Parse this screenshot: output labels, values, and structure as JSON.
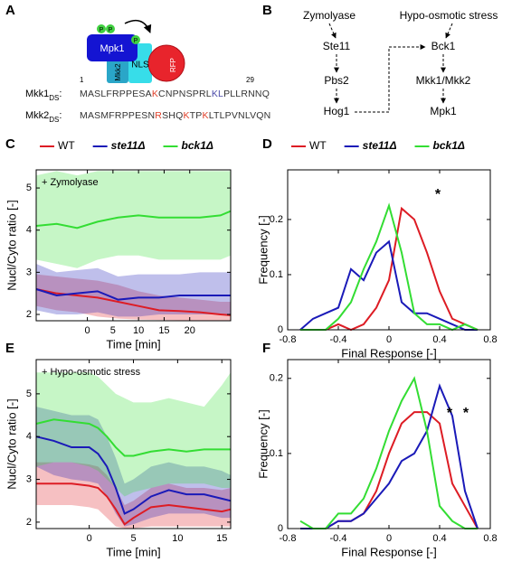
{
  "panel_a": {
    "letter": "A",
    "proteins": [
      "Mpk1",
      "Mkk2",
      "NLS",
      "RFP"
    ],
    "phospho": [
      "P",
      "P",
      "P"
    ],
    "seq_start": "1",
    "seq_end": "29",
    "sequences": [
      {
        "label": "Mkk1",
        "sub": "DS",
        "suffix": ":",
        "segments": [
          {
            "text": "MASLFRPPESA",
            "color": "#333333"
          },
          {
            "text": "K",
            "color": "#e0402a"
          },
          {
            "text": "CNPNSPRL",
            "color": "#333333"
          },
          {
            "text": "KL",
            "color": "#4a4aa8"
          },
          {
            "text": "PLLRNNQ",
            "color": "#333333"
          }
        ]
      },
      {
        "label": "Mkk2",
        "sub": "DS",
        "suffix": ":",
        "segments": [
          {
            "text": "MASMFRPPESN",
            "color": "#333333"
          },
          {
            "text": "R",
            "color": "#e0402a"
          },
          {
            "text": "SHQ",
            "color": "#333333"
          },
          {
            "text": "K",
            "color": "#e0402a"
          },
          {
            "text": "TP",
            "color": "#333333"
          },
          {
            "text": "K",
            "color": "#e0402a"
          },
          {
            "text": "LTLPVNLVQN",
            "color": "#333333"
          }
        ]
      }
    ]
  },
  "panel_b": {
    "letter": "B",
    "nodes": [
      "Zymolyase",
      "Ste11",
      "Pbs2",
      "Hog1",
      "Hypo-osmotic stress",
      "Bck1",
      "Mkk1/Mkk2",
      "Mpk1"
    ]
  },
  "chart_data": [
    {
      "panel": "C",
      "type": "line",
      "legend": "top",
      "xlabel": "Time [min]",
      "ylabel": "Nucl/Cyto ratio [-]",
      "annotations": [
        {
          "text": "+ Zymolyase",
          "color": "#000000"
        }
      ],
      "x": [
        -10,
        -6,
        -2,
        2,
        6,
        10,
        14,
        18,
        22,
        26,
        28
      ],
      "xlim": [
        -10,
        28
      ],
      "xticks": [
        0,
        5,
        10,
        15,
        20
      ],
      "ylim": [
        1.85,
        5.43
      ],
      "yticks": [
        2,
        3,
        4,
        5
      ],
      "series": [
        {
          "name": "WT",
          "color": "#dd1c24",
          "values": [
            2.6,
            2.5,
            2.45,
            2.4,
            2.3,
            2.2,
            2.1,
            2.08,
            2.05,
            2.0,
            1.98
          ],
          "lower": [
            2.2,
            2.1,
            2.05,
            1.95,
            1.9,
            1.88,
            1.87,
            1.86,
            1.86,
            1.86,
            1.86
          ],
          "upper": [
            2.95,
            2.9,
            2.85,
            2.8,
            2.7,
            2.55,
            2.45,
            2.4,
            2.35,
            2.3,
            2.3
          ]
        },
        {
          "name": "ste11Δ",
          "italic": true,
          "color": "#1a1ab8",
          "values": [
            2.6,
            2.45,
            2.5,
            2.55,
            2.35,
            2.4,
            2.4,
            2.45,
            2.45,
            2.45,
            2.45
          ],
          "lower": [
            2.1,
            2.0,
            2.0,
            2.05,
            1.95,
            1.95,
            2.0,
            2.0,
            2.0,
            2.0,
            2.0
          ],
          "upper": [
            3.2,
            3.0,
            3.05,
            3.1,
            2.9,
            2.95,
            2.95,
            2.95,
            3.0,
            3.0,
            3.0
          ]
        },
        {
          "name": "bck1Δ",
          "italic": true,
          "color": "#33dd33",
          "values": [
            4.1,
            4.15,
            4.05,
            4.2,
            4.3,
            4.35,
            4.3,
            4.3,
            4.3,
            4.35,
            4.45
          ],
          "lower": [
            3.3,
            3.2,
            3.1,
            3.3,
            3.4,
            3.4,
            3.3,
            3.3,
            3.3,
            3.3,
            3.4
          ],
          "upper": [
            5.3,
            5.4,
            5.3,
            5.4,
            5.4,
            5.4,
            5.4,
            5.4,
            5.4,
            5.4,
            5.4
          ]
        }
      ]
    },
    {
      "panel": "D",
      "type": "line",
      "legend": "top",
      "xlabel": "Final Response [-]",
      "ylabel": "Frequency [-]",
      "annotations": [
        {
          "text": "*",
          "color": "#dd1c24"
        }
      ],
      "x": [
        -0.7,
        -0.6,
        -0.5,
        -0.4,
        -0.3,
        -0.2,
        -0.1,
        0,
        0.1,
        0.2,
        0.3,
        0.4,
        0.5,
        0.6,
        0.7
      ],
      "xlim": [
        -0.8,
        0.8
      ],
      "xticks": [
        -0.8,
        -0.4,
        0,
        0.4,
        0.8
      ],
      "ylim": [
        0,
        0.29
      ],
      "yticks": [
        0,
        0.1,
        0.2
      ],
      "series": [
        {
          "name": "WT",
          "color": "#dd1c24",
          "values": [
            0,
            0,
            0,
            0.01,
            0,
            0.01,
            0.04,
            0.09,
            0.22,
            0.2,
            0.14,
            0.07,
            0.02,
            0.01,
            0
          ]
        },
        {
          "name": "ste11Δ",
          "italic": true,
          "color": "#1a1ab8",
          "values": [
            0,
            0.02,
            0.03,
            0.04,
            0.11,
            0.09,
            0.14,
            0.16,
            0.05,
            0.03,
            0.03,
            0.02,
            0.01,
            0,
            0
          ]
        },
        {
          "name": "bck1Δ",
          "italic": true,
          "color": "#33dd33",
          "values": [
            0,
            0,
            0,
            0.02,
            0.05,
            0.11,
            0.16,
            0.225,
            0.14,
            0.03,
            0.01,
            0.01,
            0,
            0.01,
            0
          ]
        }
      ]
    },
    {
      "panel": "E",
      "type": "line",
      "xlabel": "Time [min]",
      "ylabel": "Nucl/Cyto ratio [-]",
      "annotations": [
        {
          "text": "+ Hypo-osmotic stress",
          "color": "#000000"
        }
      ],
      "x": [
        -6,
        -4,
        -2,
        0,
        1,
        2,
        3,
        4,
        5,
        7,
        9,
        11,
        13,
        15,
        16
      ],
      "xlim": [
        -6,
        16
      ],
      "xticks": [
        0,
        5,
        10,
        15
      ],
      "ylim": [
        1.85,
        5.8
      ],
      "yticks": [
        2,
        3,
        4,
        5
      ],
      "series": [
        {
          "color": "#dd1c24",
          "values": [
            2.9,
            2.9,
            2.9,
            2.85,
            2.8,
            2.6,
            2.3,
            1.95,
            2.1,
            2.35,
            2.4,
            2.35,
            2.3,
            2.25,
            2.3
          ],
          "lower": [
            2.4,
            2.4,
            2.4,
            2.35,
            2.3,
            2.1,
            1.9,
            1.86,
            1.86,
            1.9,
            1.9,
            1.9,
            1.9,
            1.9,
            1.9
          ],
          "upper": [
            3.4,
            3.4,
            3.4,
            3.35,
            3.3,
            3.1,
            2.8,
            2.4,
            2.5,
            2.8,
            2.9,
            2.8,
            2.8,
            2.75,
            2.8
          ]
        },
        {
          "color": "#1a1ab8",
          "values": [
            4.0,
            3.9,
            3.75,
            3.75,
            3.6,
            3.3,
            2.8,
            2.2,
            2.3,
            2.6,
            2.75,
            2.65,
            2.65,
            2.55,
            2.5
          ],
          "lower": [
            3.3,
            3.1,
            3.0,
            2.95,
            2.9,
            2.6,
            2.2,
            1.9,
            1.95,
            2.1,
            2.2,
            2.2,
            2.2,
            2.1,
            2.1
          ],
          "upper": [
            4.7,
            4.6,
            4.5,
            4.5,
            4.4,
            4.0,
            3.5,
            2.9,
            3.0,
            3.3,
            3.4,
            3.3,
            3.3,
            3.2,
            3.1
          ]
        },
        {
          "color": "#33dd33",
          "values": [
            4.3,
            4.4,
            4.35,
            4.3,
            4.2,
            4.0,
            3.75,
            3.55,
            3.55,
            3.65,
            3.7,
            3.65,
            3.7,
            3.7,
            3.7
          ],
          "lower": [
            3.3,
            3.4,
            3.4,
            3.3,
            3.2,
            3.0,
            2.8,
            2.6,
            2.7,
            2.8,
            2.9,
            2.9,
            2.9,
            2.8,
            2.8
          ],
          "upper": [
            5.5,
            5.5,
            5.5,
            5.5,
            5.4,
            5.2,
            5.0,
            4.9,
            4.8,
            4.8,
            4.9,
            4.8,
            4.7,
            5.2,
            5.5
          ]
        }
      ]
    },
    {
      "panel": "F",
      "type": "line",
      "xlabel": "Final Response [-]",
      "ylabel": "Frequency [-]",
      "annotations": [
        {
          "text": "*",
          "color": "#dd1c24"
        },
        {
          "text": "*",
          "color": "#1a1ab8"
        }
      ],
      "x": [
        -0.7,
        -0.6,
        -0.5,
        -0.4,
        -0.3,
        -0.2,
        -0.1,
        0,
        0.1,
        0.2,
        0.3,
        0.4,
        0.5,
        0.6,
        0.7
      ],
      "xlim": [
        -0.8,
        0.8
      ],
      "xticks": [
        -0.8,
        -0.4,
        0,
        0.4,
        0.8
      ],
      "ylim": [
        0,
        0.225
      ],
      "yticks": [
        0,
        0.1,
        0.2
      ],
      "series": [
        {
          "color": "#dd1c24",
          "values": [
            0,
            0,
            0,
            0.01,
            0.01,
            0.02,
            0.05,
            0.1,
            0.14,
            0.155,
            0.155,
            0.14,
            0.06,
            0.03,
            0
          ]
        },
        {
          "color": "#1a1ab8",
          "values": [
            0,
            0,
            0,
            0.01,
            0.01,
            0.02,
            0.04,
            0.06,
            0.09,
            0.1,
            0.13,
            0.19,
            0.15,
            0.05,
            0
          ]
        },
        {
          "color": "#33dd33",
          "values": [
            0.01,
            0,
            0,
            0.02,
            0.02,
            0.04,
            0.08,
            0.13,
            0.17,
            0.2,
            0.13,
            0.03,
            0.01,
            0,
            0
          ]
        }
      ]
    }
  ]
}
